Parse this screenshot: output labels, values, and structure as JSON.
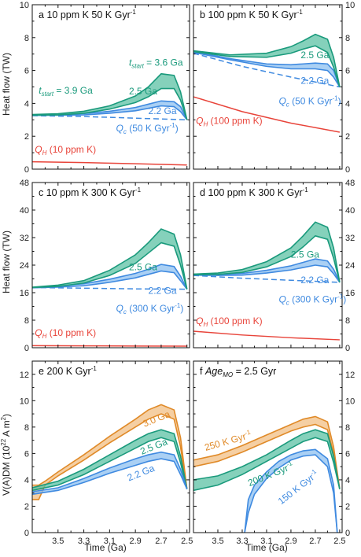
{
  "colors": {
    "green": "#1a9a7c",
    "green_fill": "#5cc2a4",
    "blue": "#3f8ae0",
    "blue_fill": "#8ec0f0",
    "red": "#e8443a",
    "orange": "#e08a28",
    "orange_fill": "#f2bf84"
  },
  "figure": {
    "ylabel_top": "Heat flow (TW)",
    "ylabel_mid": "Heat flow (TW)",
    "ylabel_bottom": "V(A)DM (10",
    "ylabel_bottom_sup": "22",
    "ylabel_bottom_end": " A m",
    "ylabel_bottom_sup2": "2",
    "ylabel_bottom_close": ")",
    "xlabel_left": "Time (Ga)",
    "xlabel_right": "Time (Ga)"
  },
  "chart_data": [
    {
      "id": "a",
      "type": "area",
      "title_letter": "a",
      "title_text": "10 ppm K   50 K Gyr",
      "title_sup": "-1",
      "xlim": [
        3.7,
        2.48
      ],
      "ylim": [
        0,
        10
      ],
      "yticks": [
        0,
        2,
        4,
        6,
        8,
        10
      ],
      "ytick_side": "left",
      "xticks": [],
      "series": [
        {
          "name": "Q_H (10 ppm K)",
          "kind": "line",
          "color": "red",
          "x": [
            3.7,
            3.3,
            2.9,
            2.5
          ],
          "y": [
            0.45,
            0.4,
            0.33,
            0.25
          ]
        },
        {
          "name": "Q_c (50 K Gyr-1)",
          "kind": "dashed",
          "color": "blue",
          "x": [
            3.7,
            3.3,
            2.9,
            2.5
          ],
          "y": [
            3.25,
            3.2,
            3.1,
            3.0
          ]
        },
        {
          "name": "2.2 Ga",
          "kind": "band",
          "color": "blue",
          "x": [
            3.7,
            3.5,
            3.3,
            3.1,
            2.9,
            2.8,
            2.7,
            2.6,
            2.55,
            2.5
          ],
          "ylow": [
            3.27,
            3.28,
            3.3,
            3.4,
            3.55,
            3.7,
            3.85,
            3.8,
            3.5,
            3.0
          ],
          "yhigh": [
            3.3,
            3.32,
            3.38,
            3.52,
            3.75,
            3.95,
            4.15,
            4.1,
            3.8,
            3.0
          ]
        },
        {
          "name": "2.5 Ga",
          "kind": "band",
          "color": "green",
          "x": [
            3.7,
            3.5,
            3.3,
            3.1,
            2.9,
            2.8,
            2.7,
            2.6,
            2.55,
            2.5
          ],
          "ylow": [
            3.28,
            3.3,
            3.4,
            3.65,
            4.05,
            4.4,
            4.9,
            4.9,
            4.2,
            3.0
          ],
          "yhigh": [
            3.32,
            3.37,
            3.52,
            3.85,
            4.45,
            5.0,
            5.8,
            5.7,
            4.7,
            3.0
          ]
        }
      ],
      "annotations": [
        {
          "text": "t",
          "sub": "start",
          "rest": " = 3.6 Ga",
          "color": "green",
          "x": 2.95,
          "y": 6.3
        },
        {
          "text": "t",
          "sub": "start",
          "rest": " = 3.9 Ga",
          "color": "green",
          "x": 3.65,
          "y": 4.6
        },
        {
          "text": "2.5 Ga",
          "color": "green",
          "x": 2.95,
          "y": 4.55
        },
        {
          "text": "2.2 Ga",
          "color": "blue",
          "x": 2.8,
          "y": 3.35
        },
        {
          "text": "Q",
          "sub": "c",
          "rest": " (50 K Gyr",
          "sup": "-1",
          "close": ")",
          "color": "blue",
          "x": 3.05,
          "y": 2.3
        },
        {
          "text": "Q",
          "sub": "H",
          "rest": " (10 ppm K)",
          "color": "red",
          "x": 3.68,
          "y": 1.0
        }
      ]
    },
    {
      "id": "b",
      "type": "area",
      "title_letter": "b",
      "title_text": "100 ppm K   50 K Gyr",
      "title_sup": "-1",
      "xlim": [
        3.7,
        2.48
      ],
      "ylim": [
        0,
        10
      ],
      "yticks": [
        0,
        2,
        4,
        6,
        8,
        10
      ],
      "ytick_side": "right",
      "xticks": [],
      "series": [
        {
          "name": "Q_H (100 ppm K)",
          "kind": "line",
          "color": "red",
          "x": [
            3.7,
            3.3,
            2.9,
            2.5
          ],
          "y": [
            4.4,
            3.5,
            2.8,
            2.25
          ]
        },
        {
          "name": "Q_c (50 K Gyr-1)",
          "kind": "dashed",
          "color": "blue",
          "x": [
            3.7,
            3.3,
            2.9,
            2.5
          ],
          "y": [
            7.05,
            6.25,
            5.6,
            5.0
          ]
        },
        {
          "name": "2.2 Ga",
          "kind": "band",
          "color": "blue",
          "x": [
            3.7,
            3.4,
            3.1,
            2.9,
            2.8,
            2.7,
            2.6,
            2.55,
            2.5
          ],
          "ylow": [
            7.1,
            6.65,
            6.25,
            6.1,
            6.1,
            6.1,
            6.0,
            5.6,
            5.0
          ],
          "yhigh": [
            7.15,
            6.72,
            6.4,
            6.35,
            6.4,
            6.45,
            6.4,
            6.0,
            5.0
          ]
        },
        {
          "name": "2.5 Ga",
          "kind": "band",
          "color": "green",
          "x": [
            3.7,
            3.4,
            3.1,
            2.9,
            2.8,
            2.7,
            2.6,
            2.55,
            2.5
          ],
          "ylow": [
            7.15,
            6.85,
            6.8,
            7.05,
            7.3,
            7.5,
            7.1,
            6.2,
            5.0
          ],
          "yhigh": [
            7.2,
            6.95,
            7.05,
            7.45,
            7.8,
            8.2,
            7.9,
            6.8,
            5.0
          ]
        }
      ],
      "annotations": [
        {
          "text": "2.5 Ga",
          "color": "green",
          "x": 2.82,
          "y": 6.75
        },
        {
          "text": "2.2 Ga",
          "color": "blue",
          "x": 2.82,
          "y": 5.2
        },
        {
          "text": "Q",
          "sub": "c",
          "rest": " (50 K Gyr",
          "sup": "-1",
          "close": ")",
          "color": "blue",
          "x": 3.0,
          "y": 3.95
        },
        {
          "text": "Q",
          "sub": "H",
          "rest": " (100 ppm K)",
          "color": "red",
          "x": 3.68,
          "y": 2.75
        }
      ]
    },
    {
      "id": "c",
      "type": "area",
      "title_letter": "c",
      "title_text": "10 ppm K   300 K Gyr",
      "title_sup": "-1",
      "xlim": [
        3.7,
        2.48
      ],
      "ylim": [
        0,
        48
      ],
      "yticks": [
        0,
        8,
        16,
        24,
        32,
        40,
        48
      ],
      "ytick_side": "left",
      "xticks": [],
      "series": [
        {
          "name": "Q_H (10 ppm K)",
          "kind": "line",
          "color": "red",
          "x": [
            3.7,
            3.3,
            2.9,
            2.5
          ],
          "y": [
            0.6,
            0.55,
            0.5,
            0.45
          ]
        },
        {
          "name": "Q_c (300 K Gyr-1)",
          "kind": "dashed",
          "color": "blue",
          "x": [
            3.7,
            3.3,
            2.9,
            2.5
          ],
          "y": [
            17.5,
            17.3,
            17.1,
            17.0
          ]
        },
        {
          "name": "2.2 Ga",
          "kind": "band",
          "color": "blue",
          "x": [
            3.7,
            3.5,
            3.3,
            3.1,
            2.9,
            2.8,
            2.7,
            2.6,
            2.55,
            2.5
          ],
          "ylow": [
            17.4,
            17.6,
            18.0,
            19.0,
            20.3,
            21.3,
            22.3,
            21.8,
            19.5,
            17.0
          ],
          "yhigh": [
            17.5,
            17.9,
            18.6,
            19.9,
            21.6,
            22.8,
            24.2,
            23.6,
            20.8,
            17.0
          ]
        },
        {
          "name": "2.5 Ga",
          "kind": "band",
          "color": "green",
          "x": [
            3.7,
            3.5,
            3.3,
            3.1,
            2.9,
            2.8,
            2.7,
            2.6,
            2.55,
            2.5
          ],
          "ylow": [
            17.5,
            17.8,
            18.8,
            21.0,
            24.5,
            27.5,
            30.5,
            29.5,
            24.0,
            17.0
          ],
          "yhigh": [
            17.6,
            18.2,
            19.5,
            22.5,
            27.0,
            30.5,
            34.5,
            33.0,
            27.0,
            17.0
          ]
        }
      ],
      "annotations": [
        {
          "text": "2.5 Ga",
          "color": "green",
          "x": 2.95,
          "y": 22.5
        },
        {
          "text": "2.2 Ga",
          "color": "blue",
          "x": 2.8,
          "y": 15.7
        },
        {
          "text": "Q",
          "sub": "c",
          "rest": " (300 K Gyr",
          "sup": "-1",
          "close": ")",
          "color": "blue",
          "x": 3.05,
          "y": 10.5
        },
        {
          "text": "Q",
          "sub": "H",
          "rest": " (10 ppm K)",
          "color": "red",
          "x": 3.68,
          "y": 3.4
        }
      ]
    },
    {
      "id": "d",
      "type": "area",
      "title_letter": "d",
      "title_text": "100 ppm K   300 K Gyr",
      "title_sup": "-1",
      "xlim": [
        3.7,
        2.48
      ],
      "ylim": [
        0,
        48
      ],
      "yticks": [
        0,
        8,
        16,
        24,
        32,
        40,
        48
      ],
      "ytick_side": "right",
      "xticks": [],
      "series": [
        {
          "name": "Q_H (100 ppm K)",
          "kind": "line",
          "color": "red",
          "x": [
            3.7,
            3.3,
            2.9,
            2.5
          ],
          "y": [
            4.8,
            3.7,
            2.9,
            2.3
          ]
        },
        {
          "name": "Q_c (300 K Gyr-1)",
          "kind": "dashed",
          "color": "blue",
          "x": [
            3.7,
            3.3,
            2.9,
            2.5
          ],
          "y": [
            21.0,
            20.2,
            19.6,
            19.0
          ]
        },
        {
          "name": "2.2 Ga",
          "kind": "band",
          "color": "blue",
          "x": [
            3.7,
            3.5,
            3.3,
            3.1,
            2.9,
            2.8,
            2.7,
            2.6,
            2.55,
            2.5
          ],
          "ylow": [
            21.1,
            21.0,
            21.1,
            21.7,
            22.6,
            23.3,
            24.0,
            23.5,
            21.5,
            19.0
          ],
          "yhigh": [
            21.3,
            21.3,
            21.6,
            22.5,
            23.8,
            24.8,
            25.8,
            25.2,
            22.8,
            19.0
          ]
        },
        {
          "name": "2.5 Ga",
          "kind": "band",
          "color": "green",
          "x": [
            3.7,
            3.5,
            3.3,
            3.1,
            2.9,
            2.8,
            2.7,
            2.6,
            2.55,
            2.5
          ],
          "ylow": [
            21.2,
            21.3,
            21.9,
            23.5,
            26.5,
            29.3,
            32.5,
            31.5,
            26.0,
            19.0
          ],
          "yhigh": [
            21.4,
            21.7,
            22.7,
            25.0,
            29.0,
            32.5,
            36.5,
            35.0,
            29.0,
            19.0
          ]
        }
      ],
      "annotations": [
        {
          "text": "2.5 Ga",
          "color": "green",
          "x": 2.9,
          "y": 26.2
        },
        {
          "text": "2.2 Ga",
          "color": "blue",
          "x": 2.82,
          "y": 18.8
        },
        {
          "text": "Q",
          "sub": "c",
          "rest": " (300 K Gyr",
          "sup": "-1",
          "close": ")",
          "color": "blue",
          "x": 3.0,
          "y": 13.2
        },
        {
          "text": "Q",
          "sub": "H",
          "rest": " (100 ppm K)",
          "color": "red",
          "x": 3.68,
          "y": 6.9
        }
      ]
    },
    {
      "id": "e",
      "type": "area",
      "title_letter": "e",
      "title_text": "200 K Gyr",
      "title_sup": "-1",
      "xlim": [
        3.7,
        2.48
      ],
      "ylim": [
        0,
        13
      ],
      "yticks": [
        0,
        2,
        4,
        6,
        8,
        10,
        12
      ],
      "ytick_side": "left",
      "xticks": [
        3.5,
        3.3,
        3.1,
        2.9,
        2.7,
        2.5
      ],
      "series": [
        {
          "name": "3.0 Ga",
          "kind": "band",
          "color": "orange",
          "x": [
            3.7,
            3.65,
            3.6,
            3.5,
            3.3,
            3.1,
            2.9,
            2.8,
            2.7,
            2.6,
            2.55,
            2.5
          ],
          "ylow": [
            2.5,
            2.5,
            3.6,
            4.3,
            5.5,
            6.8,
            8.0,
            8.6,
            9.0,
            8.6,
            6.5,
            3.3
          ],
          "yhigh": [
            3.6,
            3.6,
            3.9,
            4.6,
            5.9,
            7.3,
            8.6,
            9.3,
            9.7,
            9.3,
            7.2,
            3.3
          ]
        },
        {
          "name": "2.5 Ga",
          "kind": "band",
          "color": "green",
          "x": [
            3.7,
            3.5,
            3.3,
            3.1,
            2.9,
            2.8,
            2.7,
            2.6,
            2.55,
            2.5
          ],
          "ylow": [
            3.2,
            3.6,
            4.4,
            5.4,
            6.4,
            6.9,
            7.2,
            6.9,
            5.3,
            3.3
          ],
          "yhigh": [
            3.4,
            3.9,
            4.8,
            5.9,
            7.0,
            7.5,
            7.8,
            7.5,
            5.8,
            3.3
          ]
        },
        {
          "name": "2.2 Ga",
          "kind": "band",
          "color": "blue",
          "x": [
            3.7,
            3.5,
            3.3,
            3.1,
            2.9,
            2.8,
            2.7,
            2.6,
            2.55,
            2.5
          ],
          "ylow": [
            2.9,
            3.2,
            3.8,
            4.5,
            5.1,
            5.4,
            5.6,
            5.4,
            4.4,
            3.3
          ],
          "yhigh": [
            3.1,
            3.4,
            4.1,
            4.9,
            5.6,
            5.9,
            6.1,
            5.9,
            4.8,
            3.3
          ]
        }
      ],
      "annotations": [
        {
          "text": "3.0 Ga",
          "color": "orange",
          "x": 2.83,
          "y": 8.0,
          "rot": -22
        },
        {
          "text": "2.5 Ga",
          "color": "green",
          "x": 2.85,
          "y": 5.9,
          "rot": -22
        },
        {
          "text": "2.2 Ga",
          "color": "blue",
          "x": 2.95,
          "y": 3.9,
          "rot": -22
        }
      ]
    },
    {
      "id": "f",
      "type": "area",
      "title_letter": "f",
      "title_text": "Age",
      "title_sub": "MO",
      "title_rest": " = 2.5 Gyr",
      "xlim": [
        3.7,
        2.48
      ],
      "ylim": [
        0,
        13
      ],
      "yticks": [
        0,
        2,
        4,
        6,
        8,
        10,
        12
      ],
      "ytick_side": "right",
      "xticks": [
        3.5,
        3.3,
        3.1,
        2.9,
        2.7,
        2.5
      ],
      "series": [
        {
          "name": "250 K Gyr-1",
          "kind": "band",
          "color": "orange",
          "x": [
            3.7,
            3.5,
            3.3,
            3.1,
            2.9,
            2.8,
            2.7,
            2.6,
            2.55,
            2.5
          ],
          "ylow": [
            5.0,
            5.4,
            6.1,
            6.9,
            7.7,
            8.0,
            8.2,
            7.8,
            6.0,
            3.3
          ],
          "yhigh": [
            5.5,
            5.9,
            6.6,
            7.4,
            8.2,
            8.6,
            8.8,
            8.4,
            6.5,
            3.3
          ]
        },
        {
          "name": "200 K Gyr-1",
          "kind": "band",
          "color": "green",
          "x": [
            3.7,
            3.5,
            3.3,
            3.1,
            2.9,
            2.8,
            2.7,
            2.6,
            2.55,
            2.5
          ],
          "ylow": [
            3.2,
            3.6,
            4.4,
            5.4,
            6.4,
            6.9,
            7.2,
            6.9,
            5.3,
            3.3
          ],
          "yhigh": [
            4.0,
            4.3,
            5.0,
            5.9,
            7.0,
            7.5,
            7.8,
            7.5,
            5.8,
            3.3
          ]
        },
        {
          "name": "150 K Gyr-1",
          "kind": "band",
          "color": "blue",
          "x": [
            3.28,
            3.25,
            3.2,
            3.1,
            3.0,
            2.9,
            2.8,
            2.7,
            2.6,
            2.55,
            2.52
          ],
          "ylow": [
            0,
            1.5,
            2.9,
            4.1,
            4.9,
            5.5,
            5.8,
            5.9,
            5.0,
            3.0,
            0
          ],
          "yhigh": [
            0,
            2.5,
            3.6,
            4.6,
            5.4,
            5.9,
            6.2,
            6.3,
            5.6,
            3.6,
            0
          ]
        }
      ],
      "annotations": [
        {
          "text": "250 K Gyr",
          "sup": "-1",
          "color": "orange",
          "x": 3.6,
          "y": 6.2,
          "rot": -16
        },
        {
          "text": "200 K Gyr",
          "sup": "-1",
          "color": "green",
          "x": 3.24,
          "y": 3.5,
          "rot": -22
        },
        {
          "text": "150 K Gyr",
          "sup": "-1",
          "color": "blue",
          "x": 2.98,
          "y": 2.1,
          "rot": -38
        }
      ]
    }
  ]
}
